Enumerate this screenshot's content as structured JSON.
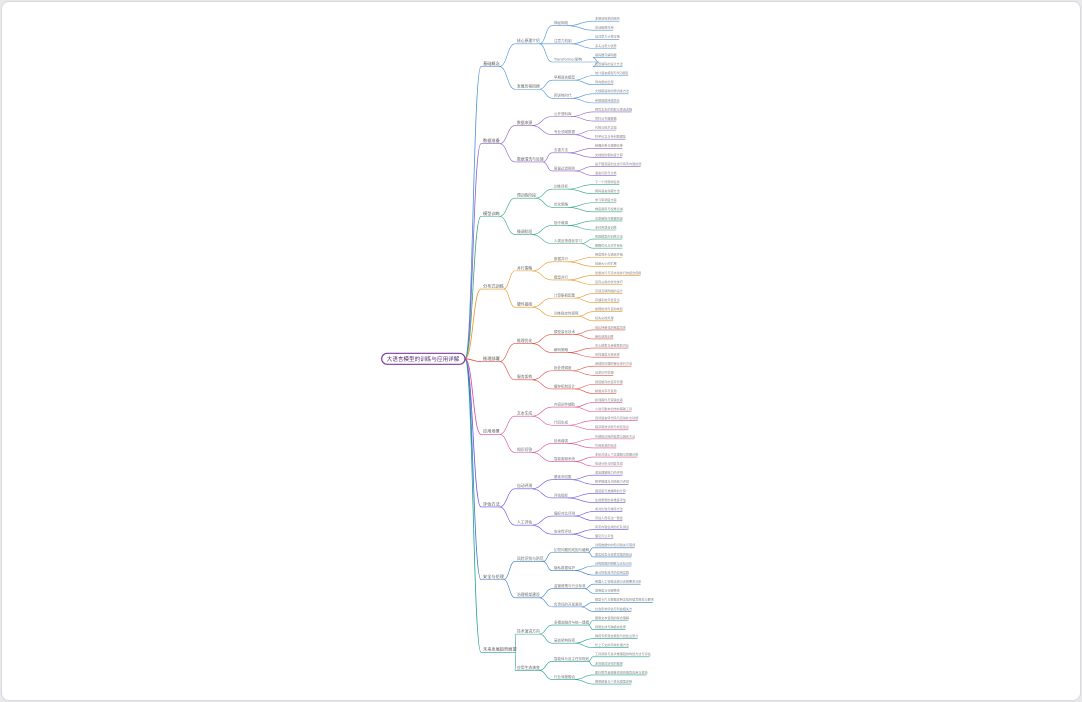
{
  "root": "大语言模型的训练与应用详解",
  "palette": [
    "#4a8fd8",
    "#8b5cc6",
    "#2ea87a",
    "#e8901f",
    "#e04a3c",
    "#d84a8f",
    "#6a4ce0",
    "#3178c8",
    "#1f9e8e"
  ],
  "branches": [
    {
      "label": "基础概念",
      "children": [
        {
          "label": "核心原理介绍",
          "children": [
            {
              "label": "神经网络",
              "children": [
                "多层感知机的结构",
                "激活函数作用"
              ]
            },
            {
              "label": "注意力机制",
              "children": [
                "自注意力计算过程",
                "多头注意力优势"
              ]
            },
            {
              "label": "Transformer架构",
              "children": [
                "编码器与解码器",
                "位置编码的设计方法"
              ]
            }
          ]
        },
        {
          "label": "发展历程回顾",
          "children": [
            {
              "label": "早期语言模型",
              "children": [
                "统计语言模型与N元模型",
                "词向量的出现"
              ]
            },
            {
              "label": "预训练时代",
              "children": [
                "大规模语料的预训练方法",
                "参数规模持续增长"
              ]
            }
          ]
        }
      ]
    },
    {
      "label": "数据准备",
      "children": [
        {
          "label": "数据来源",
          "children": [
            {
              "label": "公开语料库",
              "children": [
                "网页文本的抓取与筛选流程",
                "百科与书籍数据"
              ]
            },
            {
              "label": "专业领域数据",
              "children": [
                "代码与技术文档",
                "科学论文与专利数据集"
              ]
            }
          ]
        },
        {
          "label": "数据清洗与处理",
          "children": [
            {
              "label": "去重方法",
              "children": [
                "精确去重与模糊去重",
                "文档级别相似度计算"
              ]
            },
            {
              "label": "质量过滤规则",
              "children": [
                "基于困惑度的过滤与有害内容检测",
                "语言识别与分类"
              ]
            }
          ]
        }
      ]
    },
    {
      "label": "模型训练",
      "children": [
        {
          "label": "预训练阶段",
          "children": [
            {
              "label": "训练目标",
              "children": [
                "下一个词预测任务",
                "掩码语言建模方法"
              ]
            },
            {
              "label": "优化策略",
              "children": [
                "学习率调度方案",
                "梯度裁剪与权重衰减"
              ]
            }
          ]
        },
        {
          "label": "微调阶段",
          "children": [
            {
              "label": "指令微调",
              "children": [
                "高质量指令数据构建",
                "多任务混合训练"
              ]
            },
            {
              "label": "人类反馈强化学习",
              "children": [
                "奖励模型的训练方法",
                "策略优化与对齐目标"
              ]
            }
          ]
        }
      ]
    },
    {
      "label": "分布式训练",
      "children": [
        {
          "label": "并行策略",
          "children": [
            {
              "label": "数据并行",
              "children": [
                "梯度同步与通信开销",
                "批量大小的扩展"
              ]
            },
            {
              "label": "模型并行",
              "children": [
                "张量并行与流水线并行的结合使用",
                "显存占用的优化技巧"
              ]
            }
          ]
        },
        {
          "label": "硬件基础",
          "children": [
            {
              "label": "计算集群配置",
              "children": [
                "高速互联网络的设计",
                "存储系统与检查点"
              ]
            },
            {
              "label": "训练稳定性保障",
              "children": [
                "故障检测与自动恢复",
                "损失尖峰处理"
              ]
            }
          ]
        }
      ]
    },
    {
      "label": "推理部署",
      "children": [
        {
          "label": "推理优化",
          "children": [
            {
              "label": "模型量化技术",
              "children": [
                "低比特量化的精度损失",
                "量化感知训练"
              ]
            },
            {
              "label": "解码策略",
              "children": [
                "贪心搜索与束搜索的对比",
                "采样温度与核采样"
              ]
            }
          ]
        },
        {
          "label": "服务架构",
          "children": [
            {
              "label": "批处理调度",
              "children": [
                "连续批处理的吞吐提升方法",
                "请求队列管理"
              ]
            },
            {
              "label": "缓存机制设计",
              "children": [
                "键值缓存的显存管理",
                "前缀共享与复用"
              ]
            }
          ]
        }
      ]
    },
    {
      "label": "应用场景",
      "children": [
        {
          "label": "文本生成",
          "children": [
            {
              "label": "内容创作辅助",
              "children": [
                "新闻稿件与营销文案",
                "小说与剧本创作的辅助工具"
              ]
            },
            {
              "label": "代码生成",
              "children": [
                "自然语言转代码与自动补全功能",
                "程序错误诊断与修复建议"
              ]
            }
          ]
        },
        {
          "label": "知识问答",
          "children": [
            {
              "label": "检索增强",
              "children": [
                "外部知识库的检索与融合方法",
                "引用来源的标注"
              ]
            },
            {
              "label": "智能客服系统",
              "children": [
                "多轮对话上下文理解与意图识别",
                "情感分析与回复生成"
              ]
            }
          ]
        }
      ]
    },
    {
      "label": "评估方法",
      "children": [
        {
          "label": "自动评测",
          "children": [
            {
              "label": "基准测试集",
              "children": [
                "语言理解能力的评测",
                "数学推理与代码能力评测"
              ]
            },
            {
              "label": "评估指标",
              "children": [
                "困惑度与准确率的计算",
                "生成质量的多维度评估"
              ]
            }
          ]
        },
        {
          "label": "人工评估",
          "children": [
            {
              "label": "偏好对比评测",
              "children": [
                "成对比较与排序方法",
                "评估人员标注一致性"
              ]
            },
            {
              "label": "安全性评估",
              "children": [
                "有害内容生成的红队测试",
                "偏见与公平性"
              ]
            }
          ]
        }
      ]
    },
    {
      "label": "安全与伦理",
      "children": [
        {
          "label": "风险识别与防范",
          "children": [
            {
              "label": "幻觉问题的成因与缓解",
              "children": [
                "训练数据中的知识缺失与错误",
                "事实核查与检索增强的验证"
              ]
            },
            {
              "label": "隐私数据保护",
              "children": [
                "训练数据的脱敏与去标识化",
                "差分隐私技术的应用实践"
              ]
            }
          ]
        },
        {
          "label": "治理框架建设",
          "children": [
            {
              "label": "监管政策与行业标准",
              "children": [
                "各国人工智能法规与合规要求分析",
                "透明度与可解释性"
              ]
            },
            {
              "label": "负责任的开发原则",
              "children": [
                "模型卡片与数据说明文档的编写规范与要求",
                "社会影响评估与利益相关方"
              ]
            }
          ]
        }
      ]
    },
    {
      "label": "未来发展趋势展望",
      "children": [
        {
          "label": "技术演进方向",
          "children": [
            {
              "label": "多模态融合与统一建模",
              "children": [
                "图像文本音频的联合理解",
                "视频生成与跨模态检索"
              ]
            },
            {
              "label": "高效架构探索",
              "children": [
                "稀疏专家混合模型与线性注意力",
                "长上下文的高效处理方法"
              ]
            }
          ]
        },
        {
          "label": "应用生态演变",
          "children": [
            {
              "label": "智能体与自主任务规划",
              "children": [
                "工具调用与多步推理链的构建方法与评估",
                "多智能体协作的框架"
              ]
            },
            {
              "label": "行业深度融合",
              "children": [
                "医疗教育金融等领域的垂直应用与落地",
                "端侧部署与个性化模型定制"
              ]
            }
          ]
        }
      ]
    }
  ]
}
